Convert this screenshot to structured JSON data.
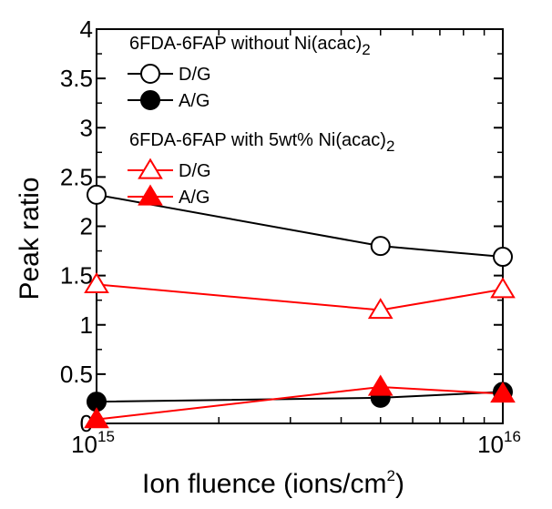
{
  "chart_data": {
    "type": "line",
    "xscale": "log",
    "xlim": [
      1000000000000000.0,
      1e+16
    ],
    "ylim": [
      0,
      4
    ],
    "xlabel": "Ion fluence (ions/cm",
    "xlabel_sup": "2",
    "xlabel_end": ")",
    "ylabel": "Peak ratio",
    "x_ticks": [
      1000000000000000.0,
      1e+16
    ],
    "x_tick_labels": [
      {
        "base": "10",
        "exp": "15"
      },
      {
        "base": "10",
        "exp": "16"
      }
    ],
    "y_ticks": [
      0,
      0.5,
      1,
      1.5,
      2,
      2.5,
      3,
      3.5,
      4
    ],
    "y_tick_labels": [
      "0",
      "0.5",
      "1",
      "1.5",
      "2",
      "2.5",
      "3",
      "3.5",
      "4"
    ],
    "grid": false,
    "legend_position": "top-left",
    "legend_groups": [
      {
        "title": "6FDA-6FAP without Ni(acac)",
        "title_sub": "2",
        "series": [
          0,
          1
        ]
      },
      {
        "title": "6FDA-6FAP with 5wt% Ni(acac)",
        "title_sub": "2",
        "series": [
          2,
          3
        ]
      }
    ],
    "x": [
      1000000000000000.0,
      5000000000000000.0,
      1e+16
    ],
    "series": [
      {
        "name": "D/G",
        "values": [
          2.32,
          1.8,
          1.69
        ],
        "color": "#000000",
        "marker": "circle",
        "filled": false
      },
      {
        "name": "A/G",
        "values": [
          0.22,
          0.26,
          0.32
        ],
        "color": "#000000",
        "marker": "circle",
        "filled": true
      },
      {
        "name": "D/G",
        "values": [
          1.41,
          1.15,
          1.36
        ],
        "color": "#ff0000",
        "marker": "triangle",
        "filled": false
      },
      {
        "name": "A/G",
        "values": [
          0.04,
          0.37,
          0.3
        ],
        "color": "#ff0000",
        "marker": "triangle",
        "filled": true
      }
    ]
  }
}
